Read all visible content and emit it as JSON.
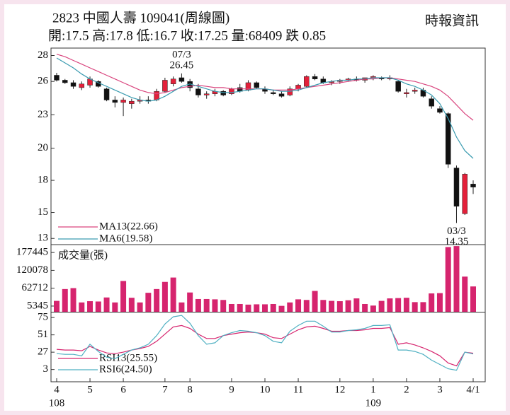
{
  "header": {
    "title": "2823  中國人壽 109041(周線圖)",
    "source": "時報資訊",
    "quote": "開:17.5 高:17.8 低:16.7 收:17.25 量:68409 跌 0.85"
  },
  "chart_data": [
    {
      "type": "candlestick",
      "open": [
        26.3,
        25.9,
        25.7,
        25.3,
        25.5,
        25.8,
        25.2,
        24.3,
        24.1,
        24.0,
        24.2,
        24.3,
        24.3,
        25.0,
        25.6,
        26.1,
        25.8,
        25.2,
        24.7,
        24.8,
        25.0,
        24.8,
        25.3,
        25.1,
        25.7,
        25.2,
        24.9,
        24.8,
        24.7,
        25.2,
        25.4,
        26.2,
        26.0,
        25.7,
        25.8,
        25.9,
        26.0,
        25.9,
        26.1,
        26.1,
        26.0,
        25.8,
        24.8,
        25.0,
        25.1,
        24.4,
        23.6,
        23.2,
        18.8,
        15.1,
        17.5
      ],
      "high": [
        26.5,
        26.0,
        25.9,
        25.8,
        26.2,
        25.9,
        25.3,
        24.6,
        24.5,
        24.4,
        24.6,
        24.6,
        25.2,
        26.1,
        26.2,
        26.45,
        26.0,
        25.6,
        25.0,
        25.2,
        25.1,
        25.3,
        25.6,
        25.9,
        25.8,
        25.4,
        25.1,
        25.0,
        25.4,
        25.6,
        26.3,
        26.4,
        26.2,
        25.9,
        26.0,
        26.1,
        26.2,
        26.1,
        26.3,
        26.2,
        26.3,
        25.9,
        25.2,
        25.3,
        25.3,
        24.6,
        23.8,
        23.3,
        19.0,
        18.4,
        17.8
      ],
      "low": [
        25.8,
        25.6,
        25.2,
        25.1,
        25.3,
        25.3,
        24.2,
        23.7,
        23.0,
        23.6,
        24.0,
        24.0,
        24.2,
        24.9,
        25.4,
        25.7,
        25.0,
        24.5,
        24.4,
        24.6,
        24.6,
        24.7,
        24.9,
        25.0,
        25.2,
        24.8,
        24.7,
        24.5,
        24.6,
        25.0,
        25.3,
        25.9,
        25.6,
        25.5,
        25.6,
        25.8,
        25.8,
        25.7,
        25.9,
        25.9,
        25.9,
        24.9,
        24.5,
        24.8,
        24.5,
        23.6,
        23.2,
        18.8,
        14.35,
        15.0,
        16.7
      ],
      "close": [
        25.9,
        25.7,
        25.4,
        25.6,
        26.0,
        25.4,
        24.3,
        24.1,
        24.3,
        24.2,
        24.3,
        24.2,
        25.0,
        25.9,
        26.0,
        25.8,
        25.3,
        24.7,
        24.8,
        25.0,
        24.7,
        25.2,
        25.0,
        25.7,
        25.3,
        25.0,
        24.8,
        24.6,
        25.2,
        25.5,
        26.2,
        26.0,
        25.7,
        25.8,
        25.9,
        26.0,
        25.9,
        26.1,
        26.2,
        26.0,
        26.1,
        25.0,
        24.9,
        25.1,
        24.6,
        23.8,
        23.3,
        19.1,
        15.7,
        18.3,
        17.25
      ],
      "colors": {
        "up": "#e3203a",
        "down": "#111111"
      },
      "series": [
        {
          "name": "MA13(22.66)",
          "color": "#d9457e",
          "values": [
            28.0,
            27.8,
            27.5,
            27.2,
            26.9,
            26.6,
            26.3,
            26.0,
            25.7,
            25.4,
            25.1,
            24.9,
            24.8,
            24.9,
            25.1,
            25.3,
            25.4,
            25.5,
            25.4,
            25.3,
            25.3,
            25.2,
            25.2,
            25.2,
            25.2,
            25.2,
            25.1,
            25.1,
            25.1,
            25.2,
            25.3,
            25.4,
            25.5,
            25.6,
            25.7,
            25.8,
            25.9,
            26.0,
            26.0,
            26.1,
            26.1,
            26.0,
            25.9,
            25.8,
            25.6,
            25.4,
            25.1,
            24.6,
            23.9,
            23.2,
            22.66
          ]
        },
        {
          "name": "MA6(19.58)",
          "color": "#3a9bb0",
          "values": [
            27.7,
            27.3,
            26.9,
            26.4,
            26.0,
            25.7,
            25.4,
            25.1,
            24.8,
            24.5,
            24.3,
            24.2,
            24.3,
            24.6,
            25.0,
            25.4,
            25.6,
            25.4,
            25.2,
            25.0,
            24.9,
            24.9,
            25.0,
            25.1,
            25.2,
            25.2,
            25.1,
            25.0,
            25.0,
            25.1,
            25.3,
            25.5,
            25.7,
            25.8,
            25.9,
            25.9,
            26.0,
            26.0,
            26.1,
            26.1,
            26.1,
            25.9,
            25.6,
            25.4,
            25.1,
            24.7,
            24.0,
            22.8,
            21.3,
            20.2,
            19.58
          ]
        }
      ],
      "annotations": [
        {
          "label": "07/3",
          "value": 26.45
        },
        {
          "label": "03/3",
          "value": 14.35
        }
      ],
      "ylim": [
        12.6,
        28.5
      ],
      "yticks": [
        {
          "value": 27.9,
          "label": "28"
        },
        {
          "value": 25.8,
          "label": "26"
        },
        {
          "value": 23.1,
          "label": "23"
        },
        {
          "value": 20.4,
          "label": "20"
        },
        {
          "value": 17.8,
          "label": "18"
        },
        {
          "value": 15.2,
          "label": "15"
        },
        {
          "value": 13.1,
          "label": "13"
        }
      ],
      "xticks": [
        {
          "value": 0,
          "label": "4"
        },
        {
          "value": 4,
          "label": "5"
        },
        {
          "value": 8,
          "label": "6"
        },
        {
          "value": 13,
          "label": "7"
        },
        {
          "value": 16,
          "label": "8"
        },
        {
          "value": 21,
          "label": "9"
        },
        {
          "value": 25,
          "label": "10"
        },
        {
          "value": 29,
          "label": "11"
        },
        {
          "value": 34,
          "label": "12"
        },
        {
          "value": 38,
          "label": "1"
        },
        {
          "value": 42,
          "label": "2"
        },
        {
          "value": 46,
          "label": "3"
        },
        {
          "value": 50,
          "label": "4/1"
        }
      ],
      "xticks_year": [
        {
          "value": 0,
          "label": "108"
        },
        {
          "value": 38,
          "label": "109"
        }
      ]
    },
    {
      "type": "bar",
      "title": "成交量(張)",
      "color": "#d6246e",
      "values": [
        22000,
        60000,
        63000,
        17000,
        21000,
        20000,
        33000,
        17000,
        86000,
        32000,
        17000,
        48000,
        60000,
        83000,
        97000,
        17000,
        49000,
        28000,
        28000,
        27000,
        25000,
        12000,
        12000,
        10000,
        11000,
        11000,
        12000,
        6000,
        17000,
        27000,
        25000,
        54000,
        25000,
        22000,
        21000,
        24000,
        30000,
        12000,
        7000,
        22000,
        30000,
        31000,
        32000,
        18000,
        18000,
        46000,
        47000,
        195000,
        198000,
        100000,
        68409
      ],
      "ylim": [
        -13000,
        200500
      ],
      "yticks": [
        177445,
        120078,
        62712,
        5345
      ]
    },
    {
      "type": "line",
      "series": [
        {
          "name": "RSI13(25.55)",
          "color": "#d6246e",
          "values": [
            31,
            30,
            30,
            29,
            35,
            30,
            26,
            25,
            27,
            30,
            32,
            35,
            42,
            52,
            62,
            64,
            60,
            52,
            46,
            46,
            50,
            52,
            54,
            55,
            54,
            52,
            47,
            46,
            52,
            58,
            62,
            63,
            60,
            56,
            56,
            57,
            57,
            58,
            60,
            60,
            61,
            38,
            40,
            37,
            33,
            28,
            22,
            12,
            8,
            27,
            25.55
          ]
        },
        {
          "name": "RSI6(24.50)",
          "color": "#4fb0c2",
          "values": [
            25,
            24,
            24,
            22,
            38,
            28,
            20,
            18,
            24,
            30,
            33,
            38,
            50,
            66,
            76,
            78,
            67,
            50,
            38,
            40,
            50,
            54,
            57,
            56,
            54,
            50,
            42,
            40,
            56,
            64,
            70,
            70,
            63,
            55,
            55,
            57,
            58,
            60,
            64,
            64,
            65,
            30,
            30,
            28,
            24,
            16,
            10,
            4,
            2,
            27,
            24.5
          ]
        }
      ],
      "ylim": [
        -14,
        82
      ],
      "yticks": [
        75,
        51,
        27,
        3
      ]
    }
  ]
}
